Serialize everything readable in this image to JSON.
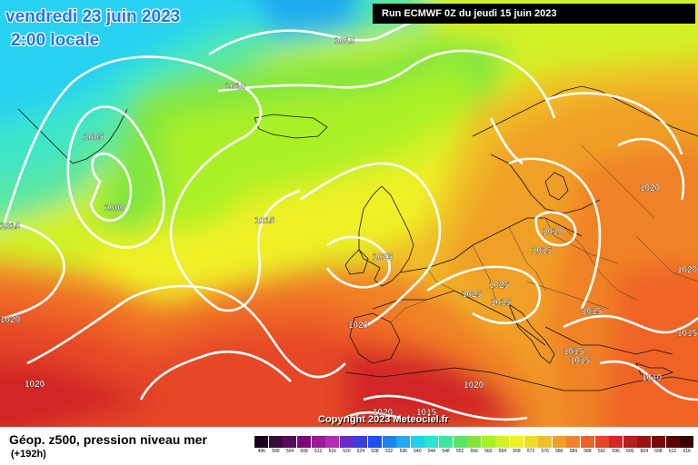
{
  "header": {
    "date_title": "vendredi 23 juin 2023",
    "time_title": "2:00 locale",
    "run_info": "Run ECMWF 0Z du jeudi 15 juin 2023"
  },
  "map": {
    "copyright": "Copyright 2023 Meteociel.fr",
    "pressure_labels": [
      {
        "text": "1010"
      },
      {
        "text": "1010"
      },
      {
        "text": "1005"
      },
      {
        "text": "1000"
      },
      {
        "text": "1015"
      },
      {
        "text": "1015"
      },
      {
        "text": "1020"
      },
      {
        "text": "1010"
      },
      {
        "text": "1015"
      },
      {
        "text": "1025"
      },
      {
        "text": "1025"
      },
      {
        "text": "1025"
      },
      {
        "text": "1015"
      },
      {
        "text": "1015"
      },
      {
        "text": "1020"
      },
      {
        "text": "1020"
      },
      {
        "text": "1020"
      },
      {
        "text": "1015"
      },
      {
        "text": "1015"
      },
      {
        "text": "1015"
      },
      {
        "text": "1010"
      },
      {
        "text": "1020"
      },
      {
        "text": "1015"
      },
      {
        "text": "1020"
      },
      {
        "text": "1020"
      }
    ]
  },
  "legend": {
    "title": "Géop. z500, pression niveau mer",
    "subtitle": "(+192h)",
    "scale": [
      {
        "label": "496",
        "color": "#1a001a"
      },
      {
        "label": "500",
        "color": "#3a0a3a"
      },
      {
        "label": "504",
        "color": "#5a0a5a"
      },
      {
        "label": "508",
        "color": "#7a0a7a"
      },
      {
        "label": "512",
        "color": "#9a1a9a"
      },
      {
        "label": "516",
        "color": "#b42ab4"
      },
      {
        "label": "520",
        "color": "#6a2ac8"
      },
      {
        "label": "524",
        "color": "#3c3cdc"
      },
      {
        "label": "528",
        "color": "#1e50f0"
      },
      {
        "label": "532",
        "color": "#1e82f0"
      },
      {
        "label": "536",
        "color": "#1eaaf0"
      },
      {
        "label": "540",
        "color": "#1ed2f0"
      },
      {
        "label": "544",
        "color": "#28e6d2"
      },
      {
        "label": "548",
        "color": "#3ce6a0"
      },
      {
        "label": "552",
        "color": "#5ae664"
      },
      {
        "label": "556",
        "color": "#82e63c"
      },
      {
        "label": "560",
        "color": "#aaf028"
      },
      {
        "label": "564",
        "color": "#d2f028"
      },
      {
        "label": "568",
        "color": "#f0f028"
      },
      {
        "label": "572",
        "color": "#f0dc28"
      },
      {
        "label": "576",
        "color": "#f0be28"
      },
      {
        "label": "580",
        "color": "#f0a028"
      },
      {
        "label": "584",
        "color": "#f08228"
      },
      {
        "label": "588",
        "color": "#f06428"
      },
      {
        "label": "592",
        "color": "#e64628"
      },
      {
        "label": "596",
        "color": "#d22828"
      },
      {
        "label": "600",
        "color": "#b41e1e"
      },
      {
        "label": "604",
        "color": "#961414"
      },
      {
        "label": "608",
        "color": "#780a0a"
      },
      {
        "label": "612",
        "color": "#5a0505"
      },
      {
        "label": "616",
        "color": "#3c0000"
      }
    ]
  }
}
